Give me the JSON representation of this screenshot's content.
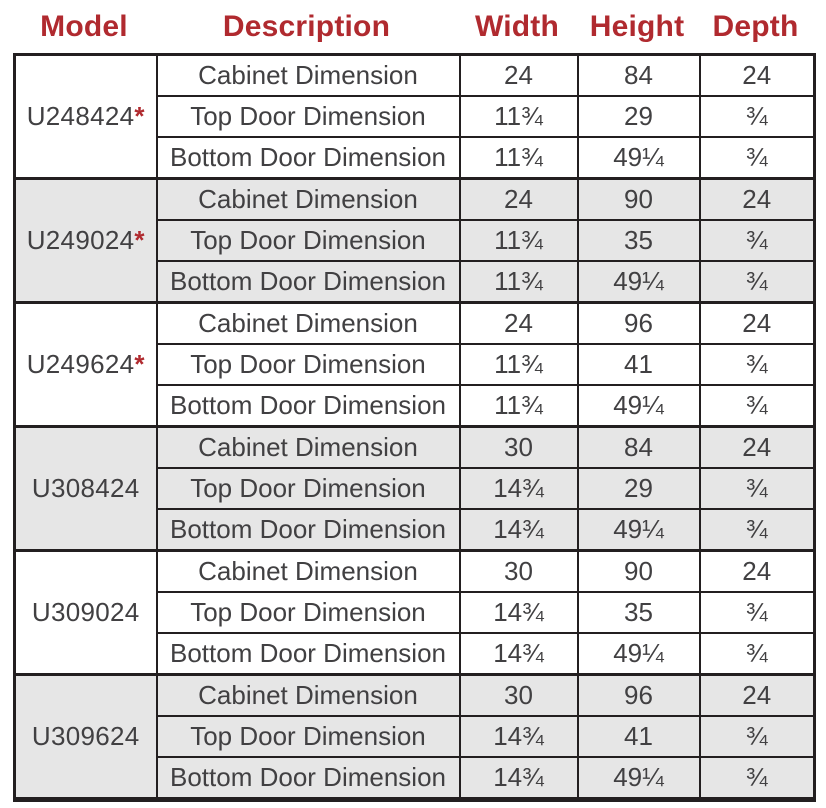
{
  "colors": {
    "header_text": "#b02a2f",
    "asterisk": "#b02a2f",
    "body_text": "#414042",
    "border": "#231f20",
    "alt_group_bg": "#e6e6e6",
    "group_bg": "#ffffff"
  },
  "table": {
    "headers": [
      "Model",
      "Description",
      "Width",
      "Height",
      "Depth"
    ],
    "groups": [
      {
        "model": "U248424",
        "asterisk": "*",
        "rows": [
          {
            "description": "Cabinet Dimension",
            "width": "24",
            "height": "84",
            "depth": "24"
          },
          {
            "description": "Top Door Dimension",
            "width": "11¾",
            "height": "29",
            "depth": "¾"
          },
          {
            "description": "Bottom Door Dimension",
            "width": "11¾",
            "height": "49¼",
            "depth": "¾"
          }
        ]
      },
      {
        "model": "U249024",
        "asterisk": "*",
        "rows": [
          {
            "description": "Cabinet Dimension",
            "width": "24",
            "height": "90",
            "depth": "24"
          },
          {
            "description": "Top Door Dimension",
            "width": "11¾",
            "height": "35",
            "depth": "¾"
          },
          {
            "description": "Bottom Door Dimension",
            "width": "11¾",
            "height": "49¼",
            "depth": "¾"
          }
        ]
      },
      {
        "model": "U249624",
        "asterisk": "*",
        "rows": [
          {
            "description": "Cabinet Dimension",
            "width": "24",
            "height": "96",
            "depth": "24"
          },
          {
            "description": "Top Door Dimension",
            "width": "11¾",
            "height": "41",
            "depth": "¾"
          },
          {
            "description": "Bottom Door Dimension",
            "width": "11¾",
            "height": "49¼",
            "depth": "¾"
          }
        ]
      },
      {
        "model": "U308424",
        "asterisk": "",
        "rows": [
          {
            "description": "Cabinet Dimension",
            "width": "30",
            "height": "84",
            "depth": "24"
          },
          {
            "description": "Top Door Dimension",
            "width": "14¾",
            "height": "29",
            "depth": "¾"
          },
          {
            "description": "Bottom Door Dimension",
            "width": "14¾",
            "height": "49¼",
            "depth": "¾"
          }
        ]
      },
      {
        "model": "U309024",
        "asterisk": "",
        "rows": [
          {
            "description": "Cabinet Dimension",
            "width": "30",
            "height": "90",
            "depth": "24"
          },
          {
            "description": "Top Door Dimension",
            "width": "14¾",
            "height": "35",
            "depth": "¾"
          },
          {
            "description": "Bottom Door Dimension",
            "width": "14¾",
            "height": "49¼",
            "depth": "¾"
          }
        ]
      },
      {
        "model": "U309624",
        "asterisk": "",
        "rows": [
          {
            "description": "Cabinet Dimension",
            "width": "30",
            "height": "96",
            "depth": "24"
          },
          {
            "description": "Top Door Dimension",
            "width": "14¾",
            "height": "41",
            "depth": "¾"
          },
          {
            "description": "Bottom Door Dimension",
            "width": "14¾",
            "height": "49¼",
            "depth": "¾"
          }
        ]
      }
    ]
  }
}
